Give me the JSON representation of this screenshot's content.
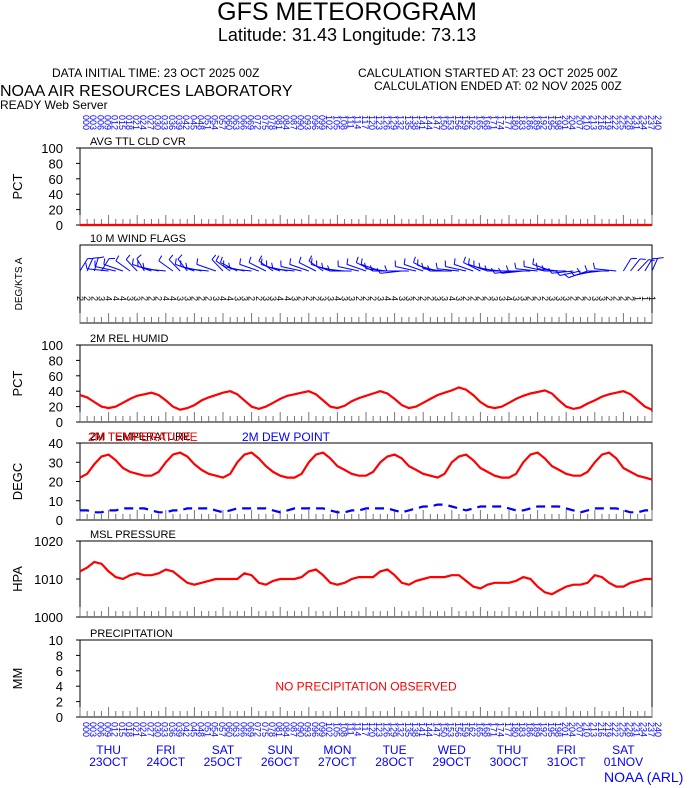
{
  "header": {
    "title": "GFS METEOROGRAM",
    "subtitle": "Latitude: 31.43 Longitude:  73.13",
    "data_initial_time": "DATA INITIAL TIME: 23 OCT 2025 00Z",
    "calc_started": "CALCULATION STARTED AT: 23 OCT 2025 00Z",
    "calc_ended": "CALCULATION ENDED AT: 02 NOV 2025 00Z",
    "lab_name": "NOAA AIR RESOURCES LABORATORY",
    "server": "READY Web Server",
    "footer": "NOAA (ARL)"
  },
  "colors": {
    "red": "#ff0000",
    "blue": "#0000ff",
    "grid": "#000000"
  },
  "days": [
    {
      "dow": "THU",
      "date": "23OCT"
    },
    {
      "dow": "FRI",
      "date": "24OCT"
    },
    {
      "dow": "SAT",
      "date": "25OCT"
    },
    {
      "dow": "SUN",
      "date": "26OCT"
    },
    {
      "dow": "MON",
      "date": "27OCT"
    },
    {
      "dow": "TUE",
      "date": "28OCT"
    },
    {
      "dow": "WED",
      "date": "29OCT"
    },
    {
      "dow": "THU",
      "date": "30OCT"
    },
    {
      "dow": "FRI",
      "date": "31OCT"
    },
    {
      "dow": "SAT",
      "date": "01NOV"
    }
  ],
  "chart_data": [
    {
      "type": "line",
      "title": "AVG TTL CLD CVR",
      "ylabel": "PCT",
      "ylim": [
        0,
        100
      ],
      "yticks": [
        "100",
        "80",
        "60",
        "40",
        "20",
        "0"
      ],
      "step_hours": 3,
      "series": [
        {
          "values": [
            0,
            0,
            0,
            0,
            0,
            0,
            0,
            0,
            0,
            0,
            0,
            0,
            0,
            0,
            0,
            0,
            0,
            0,
            0,
            0,
            0,
            0,
            0,
            0,
            0,
            0,
            0,
            0,
            0,
            0,
            0,
            0,
            0,
            0,
            0,
            0,
            0,
            0,
            0,
            0,
            0,
            0,
            0,
            0,
            0,
            0,
            0,
            0,
            0,
            0,
            0,
            0,
            0,
            0,
            0,
            0,
            0,
            0,
            0,
            0,
            0,
            0,
            0,
            0,
            0,
            0,
            0,
            0,
            0,
            0,
            0,
            0,
            0,
            0,
            0,
            0,
            0,
            0,
            0,
            0,
            0
          ]
        }
      ]
    },
    {
      "type": "wind-barbs",
      "title": "10 M  WIND FLAGS",
      "ylabel": "DEG/KTS  A",
      "step_hours": 3,
      "direction_deg": [
        20,
        15,
        10,
        20,
        280,
        290,
        300,
        320,
        330,
        340,
        300,
        290,
        280,
        320,
        330,
        335,
        300,
        290,
        280,
        300,
        330,
        320,
        310,
        290,
        280,
        300,
        310,
        320,
        300,
        290,
        280,
        290,
        300,
        310,
        320,
        300,
        290,
        280,
        270,
        290,
        300,
        310,
        300,
        280,
        270,
        260,
        270,
        290,
        300,
        310,
        295,
        280,
        270,
        280,
        290,
        300,
        310,
        300,
        290,
        280,
        270,
        260,
        260,
        270,
        280,
        290,
        300,
        280,
        270,
        260,
        250,
        240,
        250,
        260,
        270,
        280,
        20,
        25,
        30,
        20,
        15
      ],
      "ticks_hours": [
        0,
        12,
        24,
        36,
        48,
        60,
        72,
        84,
        96,
        108,
        120,
        132,
        144,
        156,
        168,
        180,
        192,
        204,
        216,
        228,
        240
      ],
      "ticks_labels": [
        "0",
        "12",
        "24",
        "36",
        "48",
        "60",
        "72",
        "84",
        "96",
        "108",
        "120",
        "132",
        "144",
        "156",
        "168",
        "180",
        "192",
        "204",
        "216",
        "228",
        "240"
      ],
      "speed_labels": [
        "2",
        "2",
        "2",
        "3",
        "4",
        "4",
        "4",
        "3",
        "3",
        "2",
        "2",
        "2",
        "4",
        "4",
        "3",
        "3",
        "2",
        "2",
        "2",
        "3",
        "4",
        "4",
        "3",
        "3",
        "2",
        "2",
        "3",
        "3",
        "4",
        "4",
        "3",
        "2",
        "2",
        "2",
        "3",
        "3",
        "4",
        "3",
        "3",
        "2",
        "2",
        "2",
        "3",
        "4",
        "4",
        "3",
        "3",
        "2",
        "2",
        "2",
        "3",
        "3",
        "4",
        "3",
        "2",
        "2",
        "2",
        "2",
        "3",
        "3",
        "4",
        "3",
        "3",
        "2",
        "2",
        "2",
        "3",
        "3",
        "3",
        "2",
        "2",
        "2",
        "3",
        "3",
        "2",
        "2",
        "2",
        "2",
        "1",
        "1",
        "1"
      ]
    },
    {
      "type": "line",
      "title": "2M REL HUMID",
      "ylabel": "PCT",
      "ylim": [
        0,
        100
      ],
      "yticks": [
        "100",
        "80",
        "60",
        "40",
        "20",
        "0"
      ],
      "step_hours": 3,
      "series": [
        {
          "values": [
            35,
            32,
            26,
            20,
            18,
            20,
            25,
            30,
            34,
            36,
            38,
            35,
            28,
            20,
            16,
            18,
            22,
            28,
            32,
            35,
            38,
            40,
            36,
            28,
            20,
            17,
            20,
            25,
            30,
            34,
            36,
            38,
            40,
            36,
            28,
            20,
            18,
            21,
            27,
            31,
            34,
            37,
            40,
            37,
            30,
            22,
            18,
            20,
            25,
            30,
            35,
            38,
            41,
            45,
            42,
            35,
            26,
            20,
            18,
            20,
            25,
            30,
            34,
            37,
            39,
            41,
            37,
            28,
            20,
            17,
            19,
            24,
            28,
            33,
            36,
            38,
            40,
            36,
            28,
            20,
            16,
            18,
            22,
            27,
            31,
            34,
            36,
            37,
            33,
            25,
            18,
            15,
            18,
            22,
            26,
            28,
            30,
            32
          ]
        }
      ]
    },
    {
      "type": "line",
      "title": "2M TEMPERATURE",
      "ylabel": "DEGC",
      "ylim": [
        0,
        40
      ],
      "yticks": [
        "40",
        "30",
        "20",
        "10",
        "0"
      ],
      "step_hours": 3,
      "legend": [
        "2M TEMPERATURE",
        "2M  DEW POINT"
      ],
      "series": [
        {
          "name": "2M TEMPERATURE",
          "values": [
            22,
            24,
            29,
            33,
            34,
            31,
            27,
            25,
            24,
            23,
            23,
            25,
            30,
            34,
            35,
            33,
            29,
            26,
            24,
            23,
            22,
            24,
            30,
            34,
            35,
            32,
            28,
            25,
            23,
            22,
            22,
            24,
            30,
            34,
            35,
            32,
            28,
            26,
            24,
            23,
            23,
            25,
            30,
            33,
            34,
            32,
            28,
            26,
            24,
            23,
            22,
            24,
            30,
            33,
            34,
            31,
            27,
            25,
            23,
            22,
            22,
            24,
            30,
            34,
            35,
            32,
            28,
            26,
            24,
            23,
            23,
            25,
            30,
            34,
            35,
            32,
            27,
            25,
            23,
            22,
            21,
            24,
            30,
            33,
            34,
            32,
            27,
            25,
            23,
            22,
            21,
            23,
            29,
            33,
            34,
            31,
            27,
            24,
            22,
            21,
            21
          ]
        },
        {
          "name": "2M  DEW POINT",
          "values": [
            5,
            5,
            4,
            4,
            5,
            5,
            6,
            6,
            6,
            6,
            5,
            4,
            4,
            5,
            5,
            6,
            6,
            6,
            6,
            5,
            4,
            5,
            6,
            6,
            6,
            6,
            6,
            5,
            4,
            5,
            6,
            6,
            6,
            6,
            6,
            5,
            4,
            4,
            5,
            5,
            6,
            6,
            6,
            6,
            5,
            4,
            5,
            6,
            7,
            7,
            8,
            8,
            7,
            6,
            5,
            6,
            7,
            7,
            7,
            7,
            6,
            5,
            5,
            6,
            7,
            7,
            7,
            7,
            6,
            5,
            4,
            5,
            6,
            6,
            6,
            6,
            5,
            4,
            4,
            5,
            5,
            6,
            6,
            6,
            5,
            4,
            3,
            3,
            3,
            3,
            3,
            3,
            4,
            4,
            3,
            3,
            3,
            4,
            4,
            4,
            4
          ]
        }
      ]
    },
    {
      "type": "line",
      "title": "MSL PRESSURE",
      "ylabel": "HPA",
      "ylim": [
        1000,
        1020
      ],
      "yticks": [
        "1020",
        "1010",
        "1000"
      ],
      "step_hours": 3,
      "series": [
        {
          "values": [
            1012,
            1013,
            1014.5,
            1014,
            1012,
            1010.5,
            1010,
            1011,
            1011.5,
            1011,
            1011,
            1011.5,
            1012.5,
            1012,
            1010.5,
            1009,
            1008.5,
            1009,
            1009.5,
            1010,
            1010,
            1010,
            1010,
            1011.5,
            1011,
            1009,
            1008.5,
            1009.5,
            1010,
            1010,
            1010,
            1010.5,
            1012,
            1012.5,
            1011,
            1009,
            1008.5,
            1009,
            1010,
            1010.5,
            1010.5,
            1010.5,
            1012,
            1012.5,
            1011,
            1009,
            1008.5,
            1009.5,
            1010,
            1010.5,
            1010.5,
            1010.5,
            1011,
            1011,
            1009.5,
            1008,
            1007.5,
            1008.5,
            1009,
            1009,
            1009,
            1009.5,
            1010.5,
            1010,
            1008,
            1006.5,
            1006,
            1007,
            1008,
            1008.5,
            1008.5,
            1009,
            1011,
            1010.5,
            1009,
            1008,
            1008,
            1009,
            1009.5,
            1010,
            1010,
            1010.5,
            1011.5,
            1011,
            1009,
            1008,
            1008,
            1009,
            1009.5,
            1010,
            1010.5,
            1011.5,
            1011.5,
            1010,
            1008.5,
            1008.5,
            1009.5,
            1010,
            1010,
            1009.5,
            1009.5
          ]
        }
      ]
    },
    {
      "type": "line",
      "title": "PRECIPITATION",
      "ylabel": "MM",
      "ylim": [
        0,
        10
      ],
      "yticks": [
        "10",
        "8",
        "6",
        "4",
        "2",
        "0"
      ],
      "annotation": "NO PRECIPITATION OBSERVED",
      "series": []
    }
  ]
}
